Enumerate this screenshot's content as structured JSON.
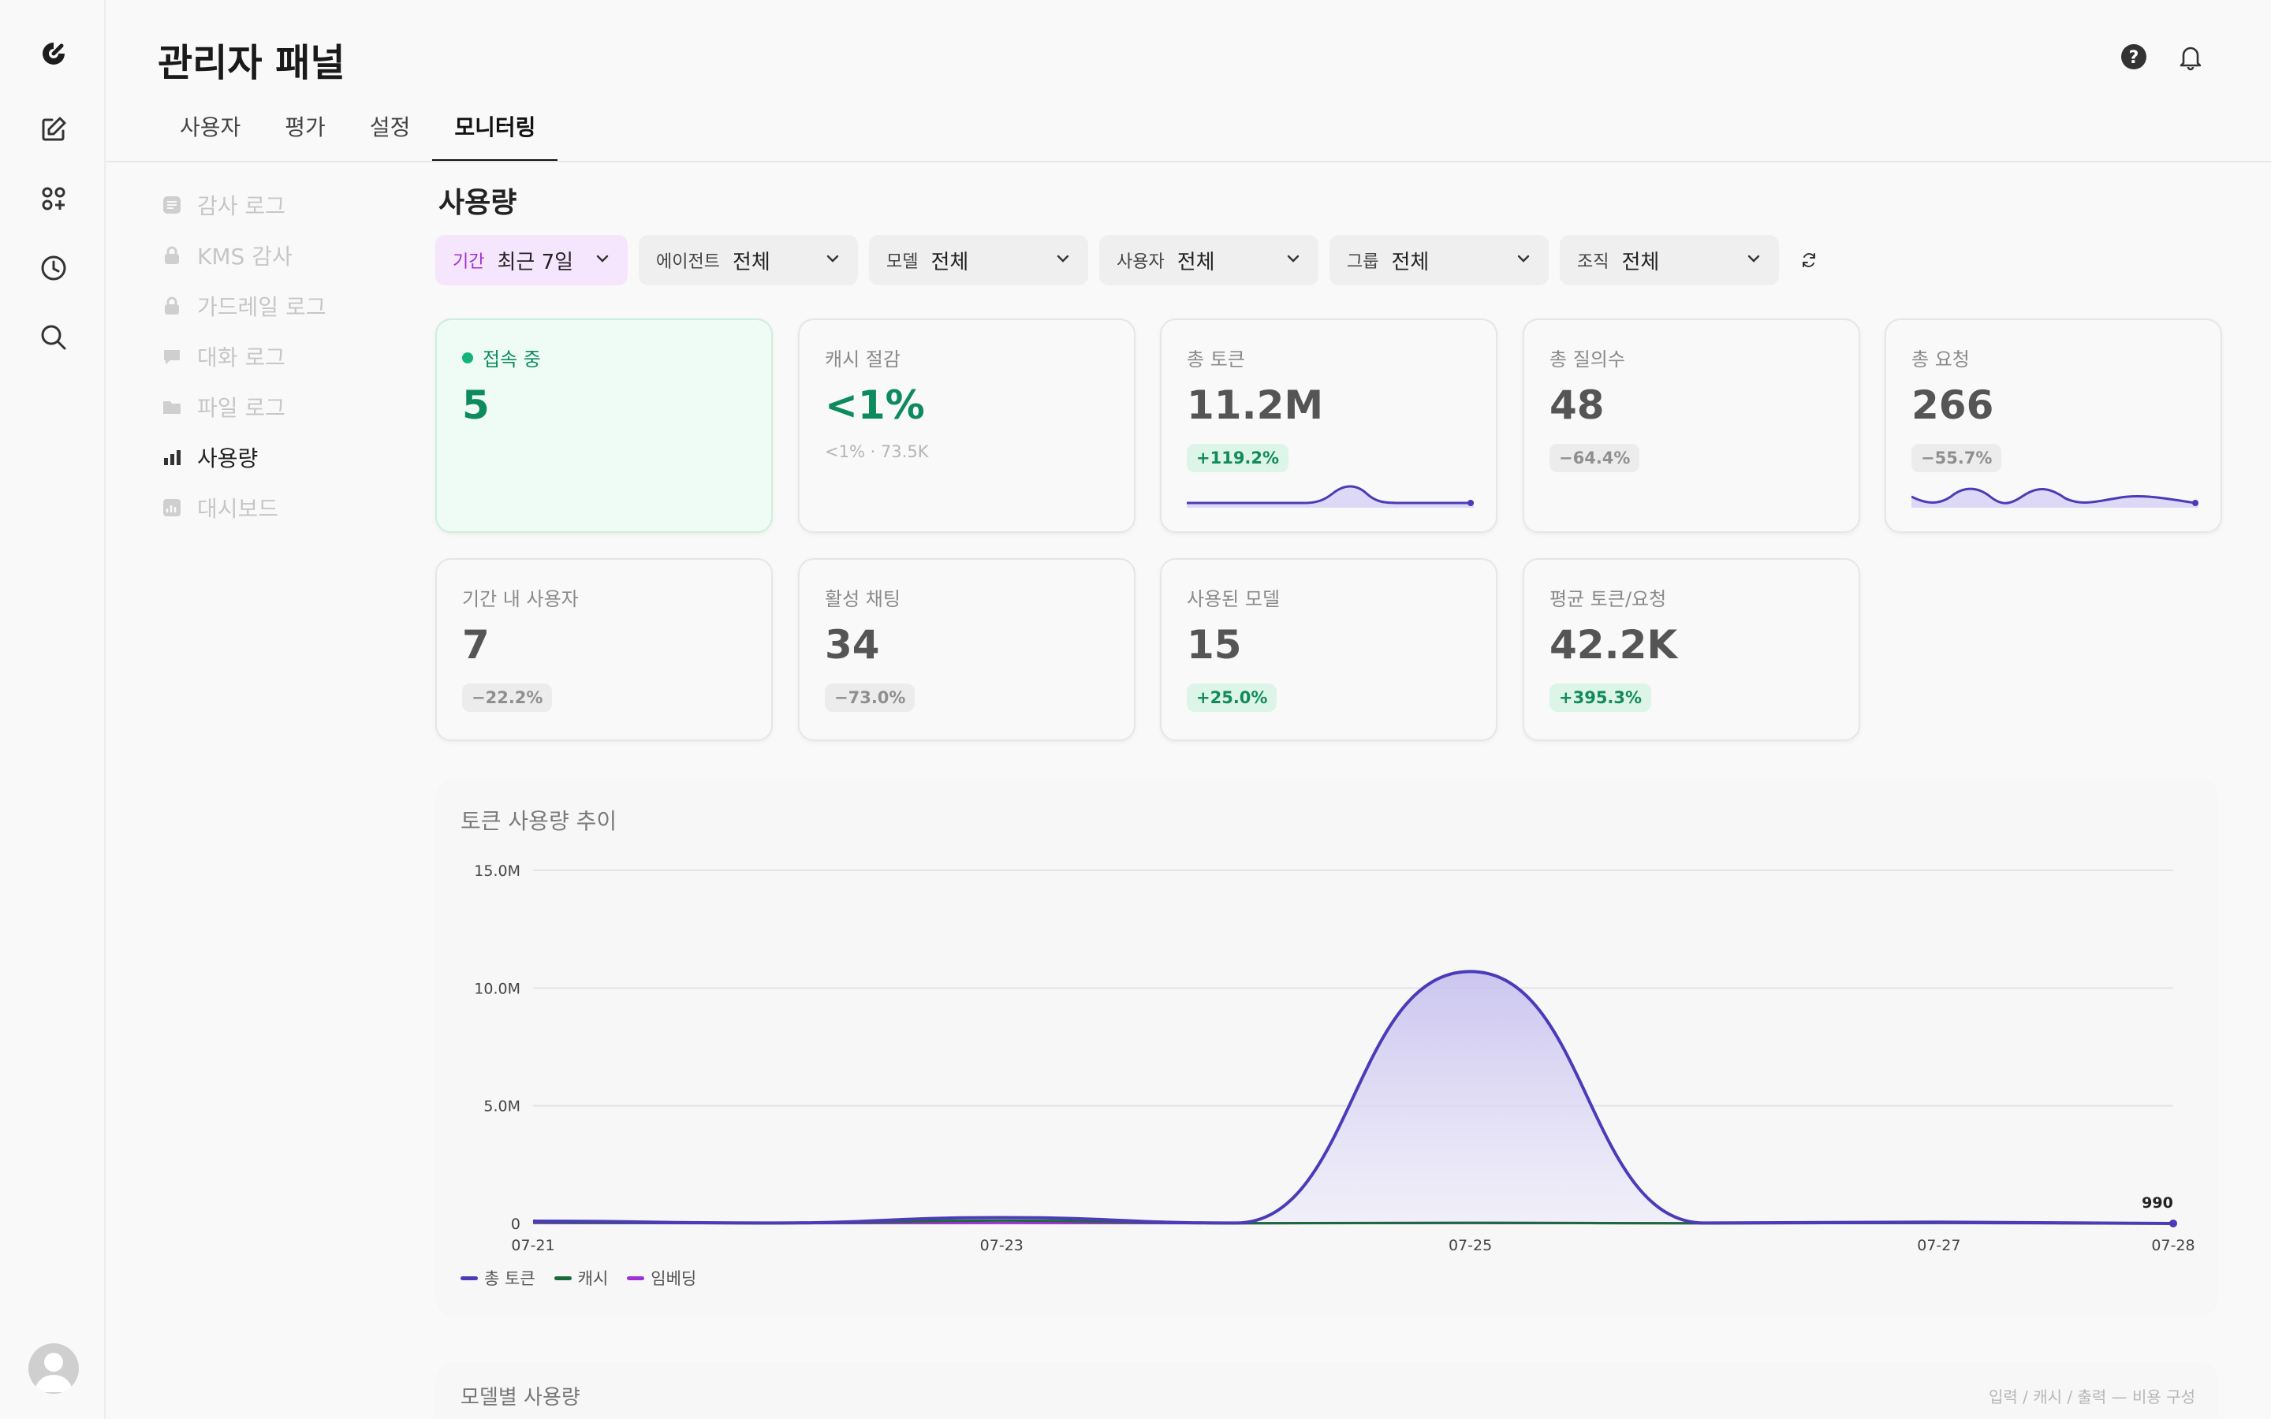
{
  "app": {
    "title": "관리자 패널"
  },
  "tabs": [
    {
      "label": "사용자",
      "active": false
    },
    {
      "label": "평가",
      "active": false
    },
    {
      "label": "설정",
      "active": false
    },
    {
      "label": "모니터링",
      "active": true
    }
  ],
  "subnav": [
    {
      "label": "감사 로그",
      "icon": "list-icon",
      "active": false
    },
    {
      "label": "KMS 감사",
      "icon": "lock-icon",
      "active": false
    },
    {
      "label": "가드레일 로그",
      "icon": "lock-icon",
      "active": false
    },
    {
      "label": "대화 로그",
      "icon": "chat-icon",
      "active": false
    },
    {
      "label": "파일 로그",
      "icon": "folder-icon",
      "active": false
    },
    {
      "label": "사용량",
      "icon": "bar-chart-icon",
      "active": true
    },
    {
      "label": "대시보드",
      "icon": "dashboard-icon",
      "active": false
    }
  ],
  "section": {
    "title": "사용량"
  },
  "filters": {
    "period": {
      "label": "기간",
      "value": "최근 7일"
    },
    "agent": {
      "label": "에이전트",
      "value": "전체"
    },
    "model": {
      "label": "모델",
      "value": "전체"
    },
    "user": {
      "label": "사용자",
      "value": "전체"
    },
    "group": {
      "label": "그룹",
      "value": "전체"
    },
    "org": {
      "label": "조직",
      "value": "전체"
    }
  },
  "cards": {
    "online": {
      "label": "접속 중",
      "value": "5"
    },
    "cache": {
      "label": "캐시 절감",
      "value": "<1%",
      "sub": "<1% · 73.5K"
    },
    "tokens": {
      "label": "총 토큰",
      "value": "11.2M",
      "change": "+119.2%"
    },
    "queries": {
      "label": "총 질의수",
      "value": "48",
      "change": "−64.4%"
    },
    "requests": {
      "label": "총 요청",
      "value": "266",
      "change": "−55.7%"
    },
    "users": {
      "label": "기간 내 사용자",
      "value": "7",
      "change": "−22.2%"
    },
    "chats": {
      "label": "활성 채팅",
      "value": "34",
      "change": "−73.0%"
    },
    "models": {
      "label": "사용된 모델",
      "value": "15",
      "change": "+25.0%"
    },
    "avg_tokens": {
      "label": "평균 토큰/요청",
      "value": "42.2K",
      "change": "+395.3%"
    }
  },
  "colors": {
    "accent": "#4a3bb8",
    "cache": "#1a6b3a",
    "embedding": "#a12fd6",
    "positive": "#138a5a"
  },
  "chart": {
    "title": "토큰 사용량 추이",
    "end_label": "990",
    "legend": [
      {
        "label": "총 토큰",
        "color": "#4a3bb8"
      },
      {
        "label": "캐시",
        "color": "#1a6b3a"
      },
      {
        "label": "임베딩",
        "color": "#a12fd6"
      }
    ]
  },
  "chart_data": {
    "type": "area",
    "x": [
      "07-21",
      "07-22",
      "07-23",
      "07-24",
      "07-25",
      "07-26",
      "07-27",
      "07-28"
    ],
    "x_tick_labels": [
      "07-21",
      "07-23",
      "07-25",
      "07-27",
      "07-28"
    ],
    "y_tick_labels": [
      "0",
      "5.0M",
      "10.0M",
      "15.0M"
    ],
    "ylim": [
      0,
      15000000
    ],
    "grid": true,
    "legend_position": "bottom-left",
    "series": [
      {
        "name": "총 토큰",
        "values": [
          100000,
          20000,
          250000,
          20000,
          10700000,
          20000,
          60000,
          990
        ]
      },
      {
        "name": "캐시",
        "values": [
          50000,
          10000,
          120000,
          10000,
          30000,
          10000,
          30000,
          500
        ]
      },
      {
        "name": "임베딩",
        "values": [
          20000,
          10000,
          20000,
          10000,
          20000,
          10000,
          20000,
          300
        ]
      }
    ]
  },
  "bottom": {
    "title": "모델별 사용량",
    "right_text": "입력 / 캐시 / 출력 — 비용 구성"
  }
}
